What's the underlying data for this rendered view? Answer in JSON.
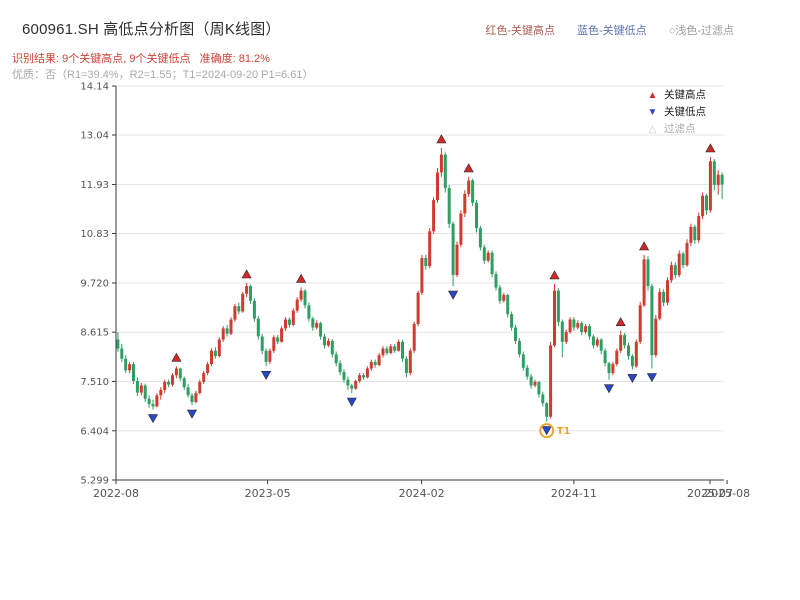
{
  "header": {
    "title": "600961.SH 高低点分析图（周K线图）",
    "colors": {
      "title": "#2f2f2f",
      "result": "#cb4335",
      "quality": "#a8a8a8"
    },
    "legend_top": [
      {
        "label": "红色-关键高点",
        "color": "#b05a52"
      },
      {
        "label": "蓝色-关键低点",
        "color": "#5a74b0"
      },
      {
        "label": "○浅色-过滤点",
        "color": "#9a9a9a"
      }
    ],
    "result_line": "识别结果: 9个关键高点, 9个关键低点   准确度: 81.2%",
    "quality_line": "优质：否（R1=39.4%，R2=1.55；T1=2024-09-20 P1=6.61）"
  },
  "legend_box": {
    "items": [
      {
        "glyph": "▲",
        "label": "关键高点",
        "color": "#d62728",
        "label_color": "#222222"
      },
      {
        "glyph": "▼",
        "label": "关键低点",
        "color": "#2947c9",
        "label_color": "#222222"
      },
      {
        "glyph": "△",
        "label": "过滤点",
        "color": "#c8c8c8",
        "label_color": "#aaaaaa"
      }
    ]
  },
  "chart_data": {
    "type": "candlestick",
    "period": "weekly",
    "ylim": [
      5.299,
      14.14
    ],
    "y_ticks": [
      5.299,
      6.404,
      7.51,
      8.615,
      9.72,
      10.83,
      11.93,
      13.04,
      14.14
    ],
    "y_tick_labels": [
      "5.299",
      "6.404",
      "7.510",
      "8.615",
      "9.720",
      "10.83",
      "11.93",
      "13.04",
      "14.14"
    ],
    "x_ticks": [
      {
        "week": -0.5,
        "label": "2022-08"
      },
      {
        "week": 38.4,
        "label": "2023-05"
      },
      {
        "week": 77.9,
        "label": "2024-02"
      },
      {
        "week": 117.0,
        "label": "2024-11"
      },
      {
        "week": 151.9,
        "label": "2025-07"
      },
      {
        "week": 156.3,
        "label": "2025-08"
      }
    ],
    "ohlc_order": [
      "open",
      "high",
      "low",
      "close"
    ],
    "candles": [
      [
        8.45,
        8.62,
        8.18,
        8.25
      ],
      [
        8.25,
        8.35,
        7.95,
        8.02
      ],
      [
        8.02,
        8.1,
        7.7,
        7.76
      ],
      [
        7.76,
        7.95,
        7.7,
        7.9
      ],
      [
        7.9,
        7.95,
        7.45,
        7.52
      ],
      [
        7.52,
        7.6,
        7.18,
        7.26
      ],
      [
        7.26,
        7.48,
        7.2,
        7.42
      ],
      [
        7.42,
        7.46,
        7.05,
        7.12
      ],
      [
        7.12,
        7.2,
        6.92,
        7.0
      ],
      [
        7.0,
        7.1,
        6.88,
        6.95
      ],
      [
        6.95,
        7.25,
        6.93,
        7.2
      ],
      [
        7.2,
        7.38,
        7.1,
        7.32
      ],
      [
        7.32,
        7.55,
        7.25,
        7.5
      ],
      [
        7.5,
        7.55,
        7.38,
        7.44
      ],
      [
        7.44,
        7.7,
        7.4,
        7.65
      ],
      [
        7.65,
        7.85,
        7.58,
        7.8
      ],
      [
        7.8,
        7.82,
        7.52,
        7.58
      ],
      [
        7.58,
        7.62,
        7.32,
        7.38
      ],
      [
        7.38,
        7.45,
        7.15,
        7.2
      ],
      [
        7.2,
        7.25,
        6.98,
        7.05
      ],
      [
        7.05,
        7.3,
        7.02,
        7.25
      ],
      [
        7.25,
        7.55,
        7.22,
        7.5
      ],
      [
        7.5,
        7.75,
        7.45,
        7.7
      ],
      [
        7.7,
        7.95,
        7.65,
        7.9
      ],
      [
        7.9,
        8.25,
        7.85,
        8.2
      ],
      [
        8.2,
        8.28,
        8.02,
        8.08
      ],
      [
        8.08,
        8.5,
        8.05,
        8.45
      ],
      [
        8.45,
        8.75,
        8.4,
        8.7
      ],
      [
        8.7,
        8.78,
        8.52,
        8.58
      ],
      [
        8.58,
        8.95,
        8.55,
        8.9
      ],
      [
        8.9,
        9.25,
        8.85,
        9.2
      ],
      [
        9.2,
        9.28,
        9.02,
        9.08
      ],
      [
        9.08,
        9.52,
        9.05,
        9.48
      ],
      [
        9.48,
        9.72,
        9.4,
        9.65
      ],
      [
        9.65,
        9.68,
        9.25,
        9.32
      ],
      [
        9.32,
        9.38,
        8.85,
        8.92
      ],
      [
        8.92,
        8.98,
        8.45,
        8.52
      ],
      [
        8.52,
        8.58,
        8.12,
        8.2
      ],
      [
        8.2,
        8.25,
        7.85,
        7.95
      ],
      [
        7.95,
        8.25,
        7.9,
        8.2
      ],
      [
        8.2,
        8.55,
        8.15,
        8.5
      ],
      [
        8.5,
        8.55,
        8.35,
        8.4
      ],
      [
        8.4,
        8.75,
        8.38,
        8.7
      ],
      [
        8.7,
        8.95,
        8.65,
        8.9
      ],
      [
        8.9,
        8.95,
        8.72,
        8.78
      ],
      [
        8.78,
        9.15,
        8.75,
        9.1
      ],
      [
        9.1,
        9.4,
        9.05,
        9.35
      ],
      [
        9.35,
        9.62,
        9.3,
        9.55
      ],
      [
        9.55,
        9.58,
        9.15,
        9.22
      ],
      [
        9.22,
        9.28,
        8.85,
        8.92
      ],
      [
        8.92,
        8.96,
        8.65,
        8.72
      ],
      [
        8.72,
        8.88,
        8.68,
        8.82
      ],
      [
        8.82,
        8.85,
        8.45,
        8.52
      ],
      [
        8.52,
        8.58,
        8.25,
        8.32
      ],
      [
        8.32,
        8.48,
        8.28,
        8.42
      ],
      [
        8.42,
        8.46,
        8.05,
        8.12
      ],
      [
        8.12,
        8.18,
        7.85,
        7.92
      ],
      [
        7.92,
        7.98,
        7.65,
        7.72
      ],
      [
        7.72,
        7.78,
        7.48,
        7.55
      ],
      [
        7.55,
        7.62,
        7.32,
        7.42
      ],
      [
        7.42,
        7.46,
        7.25,
        7.35
      ],
      [
        7.35,
        7.55,
        7.32,
        7.52
      ],
      [
        7.52,
        7.7,
        7.48,
        7.65
      ],
      [
        7.65,
        7.7,
        7.55,
        7.6
      ],
      [
        7.6,
        7.85,
        7.58,
        7.8
      ],
      [
        7.8,
        8.0,
        7.75,
        7.95
      ],
      [
        7.95,
        8.0,
        7.82,
        7.88
      ],
      [
        7.88,
        8.15,
        7.85,
        8.1
      ],
      [
        8.1,
        8.3,
        8.05,
        8.25
      ],
      [
        8.25,
        8.3,
        8.1,
        8.15
      ],
      [
        8.15,
        8.35,
        8.12,
        8.3
      ],
      [
        8.3,
        8.35,
        8.15,
        8.2
      ],
      [
        8.2,
        8.45,
        8.18,
        8.4
      ],
      [
        8.4,
        8.45,
        7.95,
        8.02
      ],
      [
        8.02,
        8.08,
        7.6,
        7.7
      ],
      [
        7.7,
        8.25,
        7.65,
        8.2
      ],
      [
        8.2,
        8.85,
        8.15,
        8.8
      ],
      [
        8.8,
        9.55,
        8.75,
        9.5
      ],
      [
        9.5,
        10.35,
        9.45,
        10.28
      ],
      [
        10.28,
        10.35,
        10.02,
        10.1
      ],
      [
        10.1,
        10.95,
        10.05,
        10.88
      ],
      [
        10.88,
        11.65,
        10.82,
        11.58
      ],
      [
        11.58,
        12.3,
        11.52,
        12.2
      ],
      [
        12.2,
        12.75,
        12.1,
        12.6
      ],
      [
        12.6,
        12.65,
        11.75,
        11.85
      ],
      [
        11.85,
        11.92,
        10.95,
        11.05
      ],
      [
        11.05,
        11.1,
        9.65,
        9.9
      ],
      [
        9.9,
        10.65,
        9.85,
        10.58
      ],
      [
        10.58,
        11.35,
        10.52,
        11.28
      ],
      [
        11.28,
        11.8,
        11.2,
        11.72
      ],
      [
        11.72,
        12.1,
        11.65,
        12.02
      ],
      [
        12.02,
        12.06,
        11.45,
        11.52
      ],
      [
        11.52,
        11.58,
        10.85,
        10.95
      ],
      [
        10.95,
        11.0,
        10.45,
        10.52
      ],
      [
        10.52,
        10.58,
        10.15,
        10.22
      ],
      [
        10.22,
        10.45,
        10.18,
        10.4
      ],
      [
        10.4,
        10.45,
        9.85,
        9.92
      ],
      [
        9.92,
        9.98,
        9.55,
        9.62
      ],
      [
        9.62,
        9.68,
        9.25,
        9.32
      ],
      [
        9.32,
        9.5,
        9.28,
        9.45
      ],
      [
        9.45,
        9.48,
        8.95,
        9.02
      ],
      [
        9.02,
        9.08,
        8.65,
        8.72
      ],
      [
        8.72,
        8.78,
        8.35,
        8.42
      ],
      [
        8.42,
        8.48,
        8.05,
        8.12
      ],
      [
        8.12,
        8.18,
        7.75,
        7.82
      ],
      [
        7.82,
        7.88,
        7.55,
        7.62
      ],
      [
        7.62,
        7.68,
        7.35,
        7.42
      ],
      [
        7.42,
        7.55,
        7.38,
        7.5
      ],
      [
        7.5,
        7.52,
        7.15,
        7.22
      ],
      [
        7.22,
        7.28,
        6.95,
        7.02
      ],
      [
        7.02,
        7.05,
        6.61,
        6.72
      ],
      [
        6.72,
        8.4,
        6.68,
        8.32
      ],
      [
        8.32,
        9.7,
        8.28,
        9.55
      ],
      [
        9.55,
        9.6,
        8.75,
        8.85
      ],
      [
        8.85,
        8.9,
        8.05,
        8.4
      ],
      [
        8.4,
        8.68,
        8.35,
        8.62
      ],
      [
        8.62,
        8.95,
        8.58,
        8.9
      ],
      [
        8.9,
        8.95,
        8.65,
        8.72
      ],
      [
        8.72,
        8.88,
        8.68,
        8.82
      ],
      [
        8.82,
        8.86,
        8.55,
        8.62
      ],
      [
        8.62,
        8.8,
        8.58,
        8.75
      ],
      [
        8.75,
        8.8,
        8.45,
        8.52
      ],
      [
        8.52,
        8.56,
        8.25,
        8.32
      ],
      [
        8.32,
        8.5,
        8.28,
        8.45
      ],
      [
        8.45,
        8.48,
        8.12,
        8.2
      ],
      [
        8.2,
        8.25,
        7.85,
        7.92
      ],
      [
        7.92,
        7.95,
        7.55,
        7.7
      ],
      [
        7.7,
        7.95,
        7.65,
        7.9
      ],
      [
        7.9,
        8.25,
        7.85,
        8.2
      ],
      [
        8.2,
        8.65,
        8.15,
        8.55
      ],
      [
        8.55,
        8.6,
        8.25,
        8.32
      ],
      [
        8.32,
        8.38,
        8.0,
        8.08
      ],
      [
        8.08,
        8.12,
        7.78,
        7.85
      ],
      [
        7.85,
        8.45,
        7.82,
        8.4
      ],
      [
        8.4,
        9.3,
        8.35,
        9.22
      ],
      [
        9.22,
        10.35,
        9.18,
        10.25
      ],
      [
        10.25,
        10.32,
        9.55,
        9.65
      ],
      [
        9.65,
        9.7,
        7.8,
        8.1
      ],
      [
        8.1,
        9.0,
        8.05,
        8.92
      ],
      [
        8.92,
        9.6,
        8.88,
        9.52
      ],
      [
        9.52,
        9.58,
        9.2,
        9.28
      ],
      [
        9.28,
        9.85,
        9.22,
        9.78
      ],
      [
        9.78,
        10.2,
        9.72,
        10.12
      ],
      [
        10.12,
        10.18,
        9.82,
        9.9
      ],
      [
        9.9,
        10.45,
        9.85,
        10.38
      ],
      [
        10.38,
        10.42,
        10.05,
        10.12
      ],
      [
        10.12,
        10.7,
        10.08,
        10.62
      ],
      [
        10.62,
        11.05,
        10.55,
        10.98
      ],
      [
        10.98,
        11.02,
        10.6,
        10.68
      ],
      [
        10.68,
        11.3,
        10.62,
        11.22
      ],
      [
        11.22,
        11.75,
        11.15,
        11.68
      ],
      [
        11.68,
        11.72,
        11.25,
        11.35
      ],
      [
        11.35,
        12.55,
        11.3,
        12.45
      ],
      [
        12.45,
        12.5,
        11.8,
        11.92
      ],
      [
        11.92,
        12.25,
        11.7,
        12.15
      ],
      [
        12.15,
        12.2,
        11.6,
        11.93
      ]
    ],
    "key_highs": [
      [
        15,
        7.85
      ],
      [
        33,
        9.72
      ],
      [
        47,
        9.62
      ],
      [
        83,
        12.75
      ],
      [
        90,
        12.1
      ],
      [
        112,
        9.7
      ],
      [
        129,
        8.65
      ],
      [
        135,
        10.35
      ],
      [
        152,
        12.55
      ]
    ],
    "key_lows": [
      [
        9,
        6.88
      ],
      [
        19,
        6.98
      ],
      [
        38,
        7.85
      ],
      [
        60,
        7.25
      ],
      [
        86,
        9.65
      ],
      [
        110,
        6.61
      ],
      [
        126,
        7.55
      ],
      [
        132,
        7.78
      ],
      [
        137,
        7.8
      ]
    ],
    "t1": {
      "week": 110,
      "price": 6.61,
      "label": "T1"
    },
    "colors": {
      "up": "#cf3b2f",
      "down": "#2e9e63",
      "key_high": "#d62728",
      "key_low": "#2947c9",
      "filtered": "#c8c8c8",
      "t1": "#f0a32f",
      "grid": "#e5e5e5",
      "axis": "#3a3a3a",
      "tick_text": "#555555"
    }
  }
}
